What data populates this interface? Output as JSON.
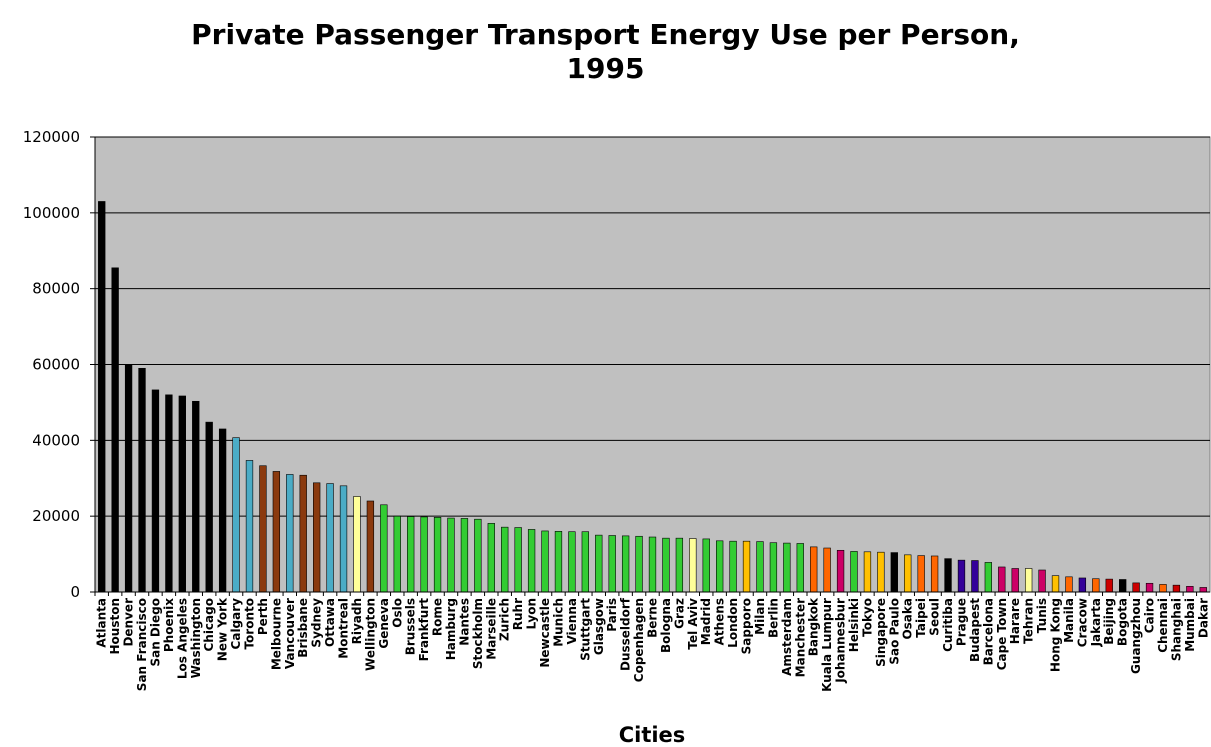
{
  "chart_data": {
    "type": "bar",
    "title": [
      "Private Passenger Transport Energy Use per Person,",
      "1995"
    ],
    "xlabel": "Cities",
    "ylabel": "",
    "ylim": [
      0,
      120000
    ],
    "yticks": [
      0,
      20000,
      40000,
      60000,
      80000,
      100000,
      120000
    ],
    "plot_background": "#c0c0c0",
    "grid": true,
    "legend": "none",
    "categories": [
      "Atlanta",
      "Houston",
      "Denver",
      "San Francisco",
      "San Diego",
      "Phoenix",
      "Los Angeles",
      "Washington",
      "Chicago",
      "New York",
      "Calgary",
      "Toronto",
      "Perth",
      "Melbourne",
      "Vancouver",
      "Brisbane",
      "Sydney",
      "Ottawa",
      "Montreal",
      "Riyadh",
      "Wellington",
      "Geneva",
      "Oslo",
      "Brussels",
      "Frankfurt",
      "Rome",
      "Hamburg",
      "Nantes",
      "Stockholm",
      "Marseille",
      "Zurich",
      "Ruhr",
      "Lyon",
      "Newcastle",
      "Munich",
      "Vienna",
      "Stuttgart",
      "Glasgow",
      "Paris",
      "Dusseldorf",
      "Copenhagen",
      "Berne",
      "Bologna",
      "Graz",
      "Tel Aviv",
      "Madrid",
      "Athens",
      "London",
      "Sapporo",
      "Milan",
      "Berlin",
      "Amsterdam",
      "Manchester",
      "Bangkok",
      "Kuala Lumpur",
      "Johannesbur",
      "Helsinki",
      "Tokyo",
      "Singapore",
      "Sao Paulo",
      "Osaka",
      "Taipei",
      "Seoul",
      "Curitiba",
      "Prague",
      "Budapest",
      "Barcelona",
      "Cape Town",
      "Harare",
      "Tehran",
      "Tunis",
      "Hong Kong",
      "Manila",
      "Cracow",
      "Jakarta",
      "Beijing",
      "Bogota",
      "Guangzhou",
      "Cairo",
      "Chennai",
      "Shanghai",
      "Mumbai",
      "Dakar"
    ],
    "values": [
      103000,
      85500,
      60000,
      59000,
      53300,
      52000,
      51700,
      50300,
      44800,
      43000,
      40700,
      34700,
      33300,
      31800,
      31000,
      30800,
      28800,
      28600,
      28000,
      25200,
      24000,
      23000,
      20000,
      19900,
      19800,
      19700,
      19500,
      19400,
      19200,
      18100,
      17100,
      17000,
      16500,
      16100,
      16000,
      15900,
      15900,
      15000,
      14900,
      14800,
      14700,
      14500,
      14200,
      14200,
      14100,
      14000,
      13500,
      13400,
      13400,
      13300,
      13000,
      12900,
      12800,
      11900,
      11600,
      11000,
      10700,
      10600,
      10500,
      10400,
      9800,
      9600,
      9500,
      8800,
      8400,
      8300,
      7800,
      6600,
      6200,
      6200,
      5800,
      4300,
      4000,
      3700,
      3500,
      3400,
      3300,
      2400,
      2300,
      2000,
      1800,
      1500,
      1200
    ],
    "colors": [
      "#000000",
      "#000000",
      "#000000",
      "#000000",
      "#000000",
      "#000000",
      "#000000",
      "#000000",
      "#000000",
      "#000000",
      "#4bacc6",
      "#4bacc6",
      "#8b3a0e",
      "#8b3a0e",
      "#4bacc6",
      "#8b3a0e",
      "#8b3a0e",
      "#4bacc6",
      "#4bacc6",
      "#ffff99",
      "#8b3a0e",
      "#33cc33",
      "#33cc33",
      "#33cc33",
      "#33cc33",
      "#33cc33",
      "#33cc33",
      "#33cc33",
      "#33cc33",
      "#33cc33",
      "#33cc33",
      "#33cc33",
      "#33cc33",
      "#33cc33",
      "#33cc33",
      "#33cc33",
      "#33cc33",
      "#33cc33",
      "#33cc33",
      "#33cc33",
      "#33cc33",
      "#33cc33",
      "#33cc33",
      "#33cc33",
      "#ffff99",
      "#33cc33",
      "#33cc33",
      "#33cc33",
      "#ffc000",
      "#33cc33",
      "#33cc33",
      "#33cc33",
      "#33cc33",
      "#ff6600",
      "#ff6600",
      "#cc0066",
      "#33cc33",
      "#ffc000",
      "#ffc000",
      "#000000",
      "#ffc000",
      "#ff6600",
      "#ff6600",
      "#000000",
      "#330099",
      "#330099",
      "#33cc33",
      "#cc0066",
      "#cc0066",
      "#ffff99",
      "#cc0066",
      "#ffc000",
      "#ff6600",
      "#330099",
      "#ff6600",
      "#cc0000",
      "#000000",
      "#cc0000",
      "#cc0066",
      "#ff6600",
      "#cc0000",
      "#cc0066",
      "#cc0066"
    ]
  }
}
